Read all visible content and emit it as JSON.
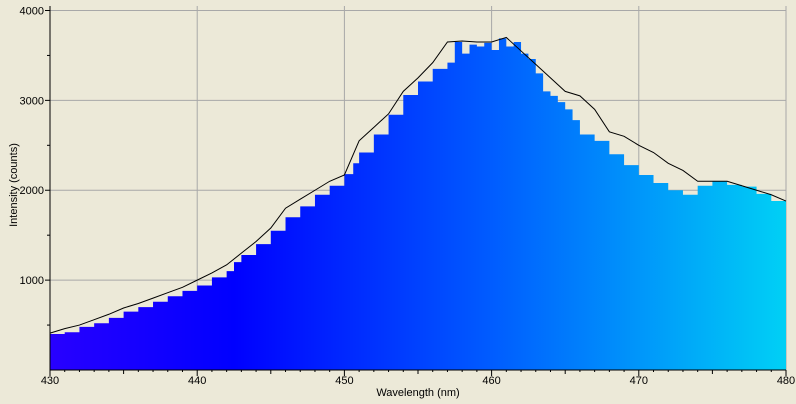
{
  "chart_data": {
    "type": "area",
    "title": "",
    "xlabel": "Wavelength (nm)",
    "ylabel": "Intensity (counts)",
    "xlim": [
      430,
      480
    ],
    "ylim": [
      0,
      4050
    ],
    "grid": true,
    "x_ticks": [
      "430",
      "440",
      "450",
      "460",
      "470",
      "480"
    ],
    "y_ticks": [
      "1000",
      "2000",
      "3000",
      "4000"
    ],
    "x_tick_values": [
      430,
      440,
      450,
      460,
      470,
      480
    ],
    "y_tick_values": [
      1000,
      2000,
      3000,
      4000
    ],
    "fill_gradient": [
      "#2800ff",
      "#0000ff",
      "#005cff",
      "#00d0f5"
    ],
    "line_color": "#000000",
    "grid_color": "#a8a8a8",
    "series": [
      {
        "x": [
          430.0,
          431.0,
          432.0,
          433.0,
          434.0,
          435.0,
          436.0,
          437.0,
          438.0,
          439.0,
          440.0,
          441.0,
          442.0,
          442.5,
          443.0,
          444.0,
          445.0,
          446.0,
          447.0,
          448.0,
          449.0,
          450.0,
          450.6,
          451.0,
          452.0,
          453.0,
          454.0,
          455.0,
          456.0,
          457.0,
          457.5,
          458.0,
          458.5,
          459.0,
          459.5,
          460.0,
          460.5,
          461.0,
          461.5,
          462.0,
          462.5,
          463.0,
          463.5,
          464.0,
          464.5,
          465.0,
          465.5,
          466.0,
          467.0,
          468.0,
          469.0,
          470.0,
          471.0,
          472.0,
          473.0,
          474.0,
          475.0,
          476.0,
          477.0,
          478.0,
          479.0,
          480.0
        ],
        "y": [
          400,
          420,
          480,
          520,
          580,
          650,
          700,
          760,
          820,
          880,
          940,
          1030,
          1100,
          1200,
          1280,
          1400,
          1550,
          1700,
          1820,
          1950,
          2050,
          2180,
          2300,
          2420,
          2620,
          2840,
          3060,
          3210,
          3350,
          3420,
          3650,
          3520,
          3620,
          3600,
          3640,
          3560,
          3690,
          3600,
          3650,
          3520,
          3460,
          3300,
          3100,
          3050,
          2980,
          2900,
          2780,
          2620,
          2550,
          2400,
          2280,
          2170,
          2080,
          2000,
          1950,
          2050,
          2100,
          2060,
          2040,
          1960,
          1880,
          1870
        ]
      },
      {
        "x": [
          430,
          431,
          432,
          433,
          434,
          435,
          436,
          437,
          438,
          439,
          440,
          441,
          442,
          443,
          444,
          445,
          446,
          447,
          448,
          449,
          450,
          451,
          452,
          453,
          454,
          455,
          456,
          457,
          458,
          459,
          460,
          461,
          462,
          463,
          464,
          465,
          466,
          467,
          468,
          469,
          470,
          471,
          472,
          473,
          474,
          475,
          476,
          477,
          478,
          479,
          480
        ],
        "y": [
          410,
          460,
          500,
          560,
          620,
          690,
          740,
          800,
          860,
          920,
          1000,
          1080,
          1170,
          1300,
          1430,
          1580,
          1800,
          1900,
          2000,
          2100,
          2170,
          2550,
          2700,
          2850,
          3100,
          3250,
          3420,
          3650,
          3660,
          3650,
          3650,
          3700,
          3550,
          3400,
          3250,
          3100,
          3050,
          2900,
          2650,
          2600,
          2500,
          2420,
          2300,
          2220,
          2100,
          2100,
          2100,
          2050,
          2000,
          1950,
          1880
        ]
      }
    ]
  }
}
